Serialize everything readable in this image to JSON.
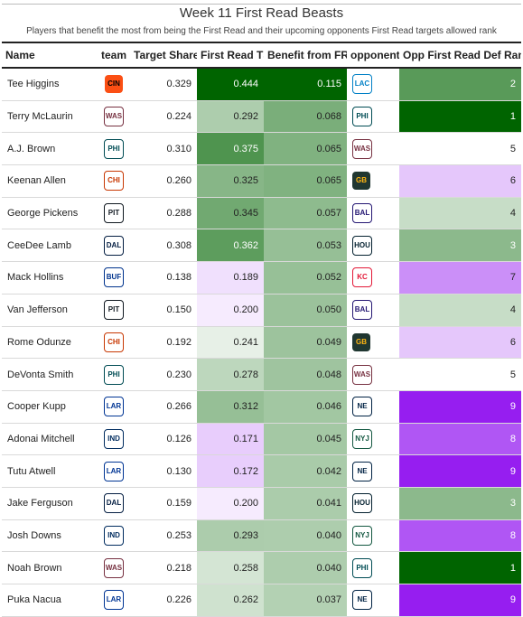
{
  "chart_data": {
    "type": "table",
    "title": "Week 11 First Read Beasts",
    "subtitle": "Players that benefit the most from being the First Read and their upcoming opponents First Read targets allowed rank",
    "columns": [
      "Name",
      "team",
      "Target Share",
      "First Read TS",
      "Benefit from FR",
      "opponent",
      "Opp First Read Def Rank"
    ],
    "rows": [
      {
        "name": "Tee Higgins",
        "team": "CIN",
        "target_share": "0.329",
        "first_read_ts": "0.444",
        "benefit": "0.115",
        "opponent": "LAC",
        "rank": "2"
      },
      {
        "name": "Terry McLaurin",
        "team": "WAS",
        "target_share": "0.224",
        "first_read_ts": "0.292",
        "benefit": "0.068",
        "opponent": "PHI",
        "rank": "1"
      },
      {
        "name": "A.J. Brown",
        "team": "PHI",
        "target_share": "0.310",
        "first_read_ts": "0.375",
        "benefit": "0.065",
        "opponent": "WAS",
        "rank": "5"
      },
      {
        "name": "Keenan Allen",
        "team": "CHI",
        "target_share": "0.260",
        "first_read_ts": "0.325",
        "benefit": "0.065",
        "opponent": "GB",
        "rank": "6"
      },
      {
        "name": "George Pickens",
        "team": "PIT",
        "target_share": "0.288",
        "first_read_ts": "0.345",
        "benefit": "0.057",
        "opponent": "BAL",
        "rank": "4"
      },
      {
        "name": "CeeDee Lamb",
        "team": "DAL",
        "target_share": "0.308",
        "first_read_ts": "0.362",
        "benefit": "0.053",
        "opponent": "HOU",
        "rank": "3"
      },
      {
        "name": "Mack Hollins",
        "team": "BUF",
        "target_share": "0.138",
        "first_read_ts": "0.189",
        "benefit": "0.052",
        "opponent": "KC",
        "rank": "7"
      },
      {
        "name": "Van Jefferson",
        "team": "PIT",
        "target_share": "0.150",
        "first_read_ts": "0.200",
        "benefit": "0.050",
        "opponent": "BAL",
        "rank": "4"
      },
      {
        "name": "Rome Odunze",
        "team": "CHI",
        "target_share": "0.192",
        "first_read_ts": "0.241",
        "benefit": "0.049",
        "opponent": "GB",
        "rank": "6"
      },
      {
        "name": "DeVonta Smith",
        "team": "PHI",
        "target_share": "0.230",
        "first_read_ts": "0.278",
        "benefit": "0.048",
        "opponent": "WAS",
        "rank": "5"
      },
      {
        "name": "Cooper Kupp",
        "team": "LAR",
        "target_share": "0.266",
        "first_read_ts": "0.312",
        "benefit": "0.046",
        "opponent": "NE",
        "rank": "9"
      },
      {
        "name": "Adonai Mitchell",
        "team": "IND",
        "target_share": "0.126",
        "first_read_ts": "0.171",
        "benefit": "0.045",
        "opponent": "NYJ",
        "rank": "8"
      },
      {
        "name": "Tutu Atwell",
        "team": "LAR",
        "target_share": "0.130",
        "first_read_ts": "0.172",
        "benefit": "0.042",
        "opponent": "NE",
        "rank": "9"
      },
      {
        "name": "Jake Ferguson",
        "team": "DAL",
        "target_share": "0.159",
        "first_read_ts": "0.200",
        "benefit": "0.041",
        "opponent": "HOU",
        "rank": "3"
      },
      {
        "name": "Josh Downs",
        "team": "IND",
        "target_share": "0.253",
        "first_read_ts": "0.293",
        "benefit": "0.040",
        "opponent": "NYJ",
        "rank": "8"
      },
      {
        "name": "Noah Brown",
        "team": "WAS",
        "target_share": "0.218",
        "first_read_ts": "0.258",
        "benefit": "0.040",
        "opponent": "PHI",
        "rank": "1"
      },
      {
        "name": "Puka Nacua",
        "team": "LAR",
        "target_share": "0.226",
        "first_read_ts": "0.262",
        "benefit": "0.037",
        "opponent": "NE",
        "rank": "9"
      }
    ]
  },
  "logos": {
    "CIN": {
      "bg": "#fb4f14",
      "fg": "#000000",
      "icon": "tiger-stripes-icon"
    },
    "WAS": {
      "bg": "#ffffff",
      "fg": "#773141",
      "icon": "w-logo-icon"
    },
    "PHI": {
      "bg": "#ffffff",
      "fg": "#004c54",
      "icon": "eagle-icon"
    },
    "CHI": {
      "bg": "#ffffff",
      "fg": "#c83803",
      "icon": "c-logo-icon"
    },
    "PIT": {
      "bg": "#ffffff",
      "fg": "#101820",
      "icon": "steelers-icon"
    },
    "DAL": {
      "bg": "#ffffff",
      "fg": "#041e42",
      "icon": "star-icon"
    },
    "BUF": {
      "bg": "#ffffff",
      "fg": "#00338d",
      "icon": "buffalo-icon"
    },
    "LAR": {
      "bg": "#ffffff",
      "fg": "#003594",
      "icon": "la-logo-icon"
    },
    "IND": {
      "bg": "#ffffff",
      "fg": "#002c5f",
      "icon": "horseshoe-icon"
    },
    "LAC": {
      "bg": "#ffffff",
      "fg": "#0080c6",
      "icon": "bolt-icon"
    },
    "GB": {
      "bg": "#203731",
      "fg": "#ffb612",
      "icon": "g-logo-icon"
    },
    "BAL": {
      "bg": "#ffffff",
      "fg": "#241773",
      "icon": "raven-icon"
    },
    "HOU": {
      "bg": "#ffffff",
      "fg": "#03202f",
      "icon": "bull-head-icon"
    },
    "KC": {
      "bg": "#ffffff",
      "fg": "#e31837",
      "icon": "arrowhead-icon"
    },
    "NE": {
      "bg": "#ffffff",
      "fg": "#002244",
      "icon": "patriot-icon"
    },
    "NYJ": {
      "bg": "#ffffff",
      "fg": "#125740",
      "icon": "jets-icon"
    }
  }
}
